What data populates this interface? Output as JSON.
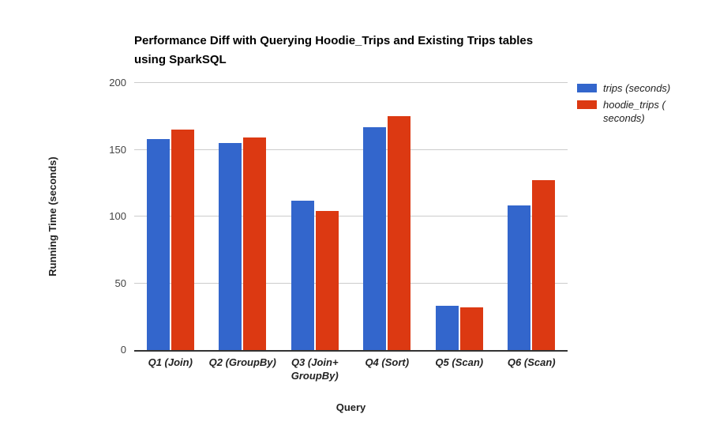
{
  "chart_data": {
    "type": "bar",
    "title": "Performance Diff with Querying Hoodie_Trips and Existing Trips tables using SparkSQL",
    "title_lines": [
      "Performance Diff with Querying Hoodie_Trips and Existing Trips tables",
      "using SparkSQL"
    ],
    "xlabel": "Query",
    "ylabel": "Running Time (seconds)",
    "ylim": [
      0,
      200
    ],
    "yticks": [
      0,
      50,
      100,
      150,
      200
    ],
    "grid": true,
    "legend_position": "right",
    "categories": [
      "Q1 (Join)",
      "Q2 (GroupBy)",
      "Q3 (Join+ GroupBy)",
      "Q4 (Sort)",
      "Q5 (Scan)",
      "Q6 (Scan)"
    ],
    "series": [
      {
        "name": "trips (seconds)",
        "color": "#3366cc",
        "values": [
          158,
          155,
          112,
          167,
          33,
          108
        ]
      },
      {
        "name": "hoodie_trips (seconds)",
        "color": "#dc3912",
        "values": [
          165,
          159,
          104,
          175,
          32,
          127
        ]
      }
    ],
    "legend": {
      "items": [
        {
          "lines": [
            "trips (seconds)"
          ],
          "color": "#3366cc"
        },
        {
          "lines": [
            "hoodie_trips (",
            "seconds)"
          ],
          "color": "#dc3912"
        }
      ]
    },
    "colors": {
      "gridline": "#cccccc",
      "axis_line": "#333333",
      "tick_label": "#444444",
      "axis_title": "#222222",
      "title": "#000000"
    }
  }
}
